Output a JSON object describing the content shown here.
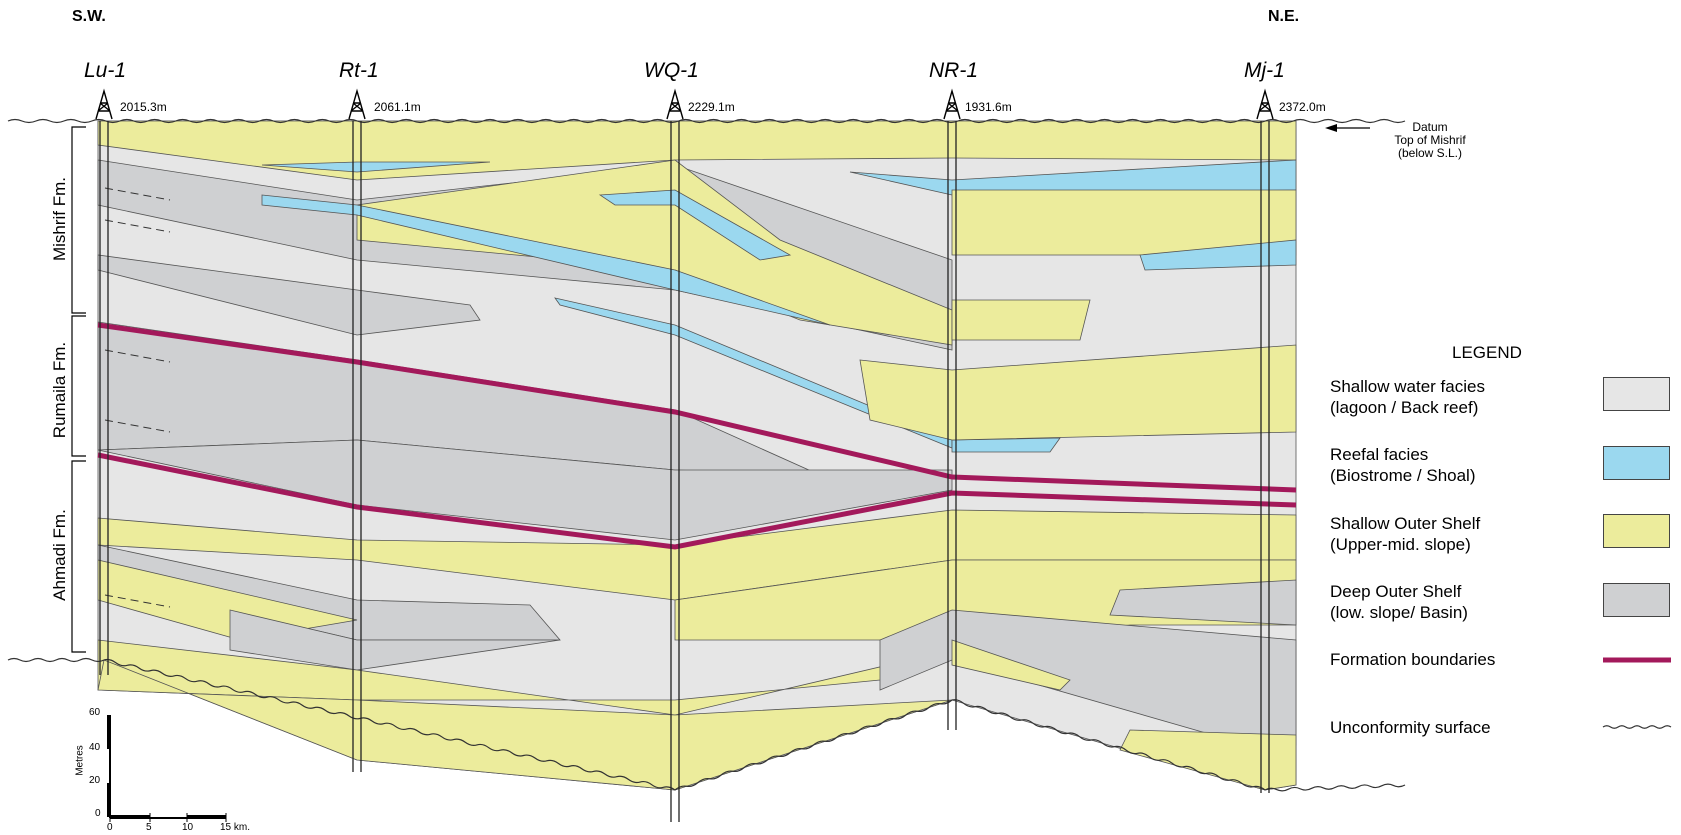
{
  "orientation": {
    "left": "S.W.",
    "right": "N.E."
  },
  "wells": [
    {
      "name": "Lu-1",
      "elevation": "2015.3m"
    },
    {
      "name": "Rt-1",
      "elevation": "2061.1m"
    },
    {
      "name": "WQ-1",
      "elevation": "2229.1m"
    },
    {
      "name": "NR-1",
      "elevation": "1931.6m"
    },
    {
      "name": "Mj-1",
      "elevation": "2372.0m"
    }
  ],
  "formations": [
    "Mishrif Fm.",
    "Rumaila Fm.",
    "Ahmadi Fm."
  ],
  "datum": {
    "line1": "Datum",
    "line2": "Top of Mishrif",
    "line3": "(below S.L.)"
  },
  "legend": {
    "title": "LEGEND",
    "items": [
      {
        "label": "Shallow water facies\n(lagoon / Back reef)",
        "color": "#e6e6e6",
        "kind": "swatch"
      },
      {
        "label": "Reefal facies\n(Biostrome / Shoal)",
        "color": "#9bd8ef",
        "kind": "swatch"
      },
      {
        "label": "Shallow Outer Shelf\n(Upper-mid. slope)",
        "color": "#ecec9c",
        "kind": "swatch"
      },
      {
        "label": "Deep Outer Shelf\n(low. slope/ Basin)",
        "color": "#cfd0d2",
        "kind": "swatch"
      },
      {
        "label": "Formation boundaries",
        "color": "#a3195b",
        "kind": "line"
      },
      {
        "label": "Unconformity surface",
        "color": "#333333",
        "kind": "wave"
      }
    ]
  },
  "scale_bar": {
    "vertical_title": "Metres",
    "vertical_ticks": [
      "60",
      "40",
      "20",
      "0"
    ],
    "horizontal_ticks": [
      "0",
      "5",
      "10",
      "15 km."
    ]
  },
  "colors": {
    "shallow_water": "#e6e6e6",
    "reefal": "#9bd8ef",
    "outer_shelf": "#ecec9c",
    "deep_shelf": "#cfd0d2",
    "boundary": "#a3195b"
  }
}
